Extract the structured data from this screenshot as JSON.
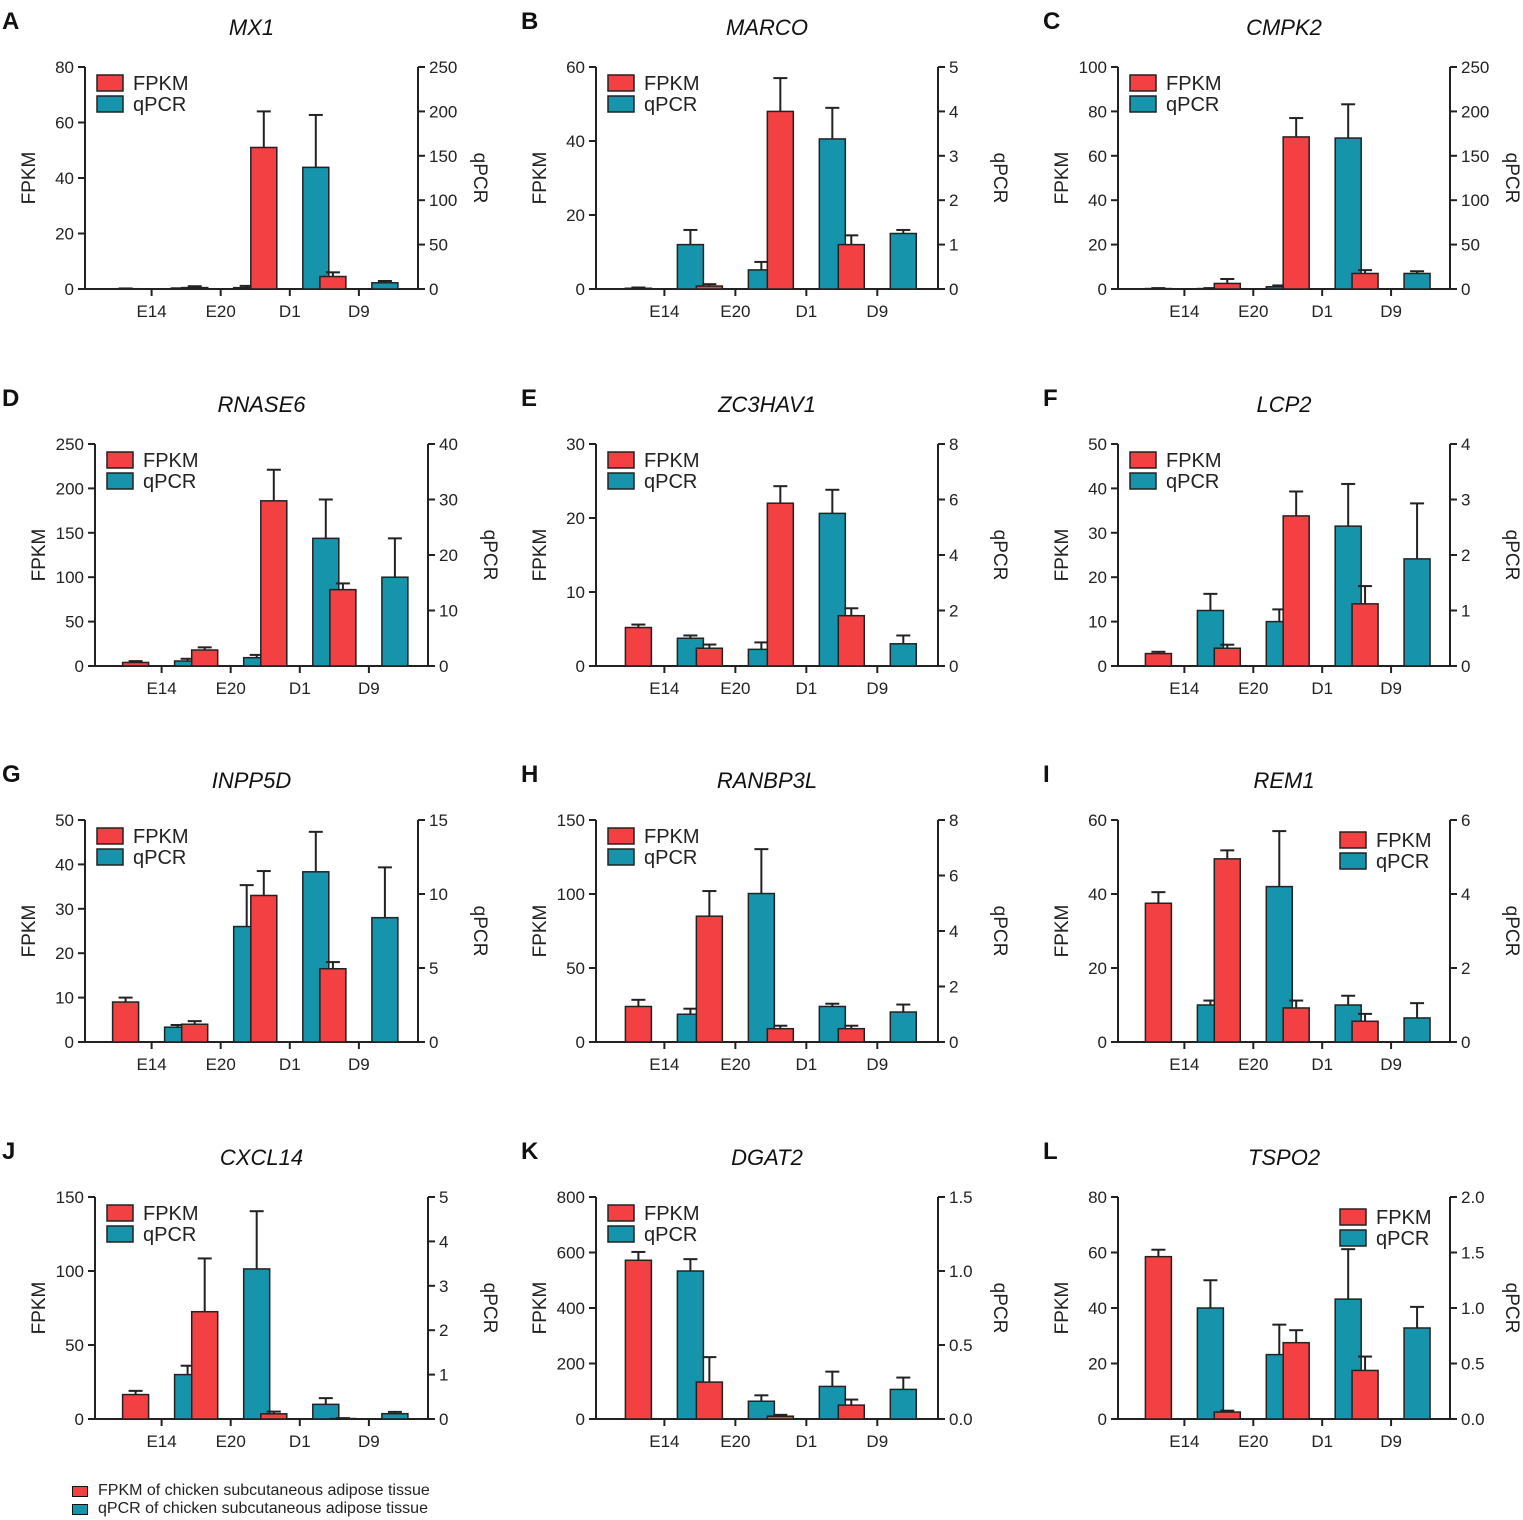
{
  "colors": {
    "fpkm": "#f24043",
    "qpcr": "#1594ab",
    "axis": "#222222"
  },
  "legend": {
    "fpkm_label": "FPKM",
    "qpcr_label": "qPCR"
  },
  "axis_labels": {
    "left": "FPKM",
    "right": "qPCR"
  },
  "footer_legend": {
    "fpkm": "FPKM of chicken subcutaneous adipose tissue",
    "qpcr": "qPCR of chicken subcutaneous adipose tissue"
  },
  "chart_data": [
    {
      "type": "bar",
      "panel": "A",
      "title": "MX1",
      "categories": [
        "E14",
        "E20",
        "D1",
        "D9"
      ],
      "left": {
        "label": "FPKM",
        "ylim": [
          0,
          80
        ],
        "ticks": [
          "0",
          "20",
          "40",
          "60",
          "80"
        ]
      },
      "right": {
        "label": "qPCR",
        "ylim": [
          0,
          250
        ],
        "ticks": [
          "0",
          "50",
          "100",
          "150",
          "200",
          "250"
        ]
      },
      "legend_position": "top-left",
      "series": [
        {
          "name": "FPKM",
          "axis": "left",
          "values": [
            0.1,
            0.5,
            51,
            4.5
          ],
          "errors": [
            0.1,
            0.5,
            13,
            1.5
          ]
        },
        {
          "name": "qPCR",
          "axis": "right",
          "values": [
            0.3,
            1.5,
            137,
            7
          ],
          "errors": [
            0.5,
            2,
            59,
            2
          ]
        }
      ]
    },
    {
      "type": "bar",
      "panel": "B",
      "title": "MARCO",
      "categories": [
        "E14",
        "E20",
        "D1",
        "D9"
      ],
      "left": {
        "label": "FPKM",
        "ylim": [
          0,
          60
        ],
        "ticks": [
          "0",
          "20",
          "40",
          "60"
        ]
      },
      "right": {
        "label": "qPCR",
        "ylim": [
          0,
          5
        ],
        "ticks": [
          "0",
          "1",
          "2",
          "3",
          "4",
          "5"
        ]
      },
      "legend_position": "top-left",
      "series": [
        {
          "name": "FPKM",
          "axis": "left",
          "values": [
            0.2,
            0.8,
            48,
            12
          ],
          "errors": [
            0.2,
            0.5,
            9,
            2.5
          ]
        },
        {
          "name": "qPCR",
          "axis": "right",
          "values": [
            1,
            0.43,
            3.38,
            1.25
          ],
          "errors": [
            0.33,
            0.18,
            0.7,
            0.08
          ]
        }
      ]
    },
    {
      "type": "bar",
      "panel": "C",
      "title": "CMPK2",
      "categories": [
        "E14",
        "E20",
        "D1",
        "D9"
      ],
      "left": {
        "label": "FPKM",
        "ylim": [
          0,
          100
        ],
        "ticks": [
          "0",
          "20",
          "40",
          "60",
          "80",
          "100"
        ]
      },
      "right": {
        "label": "qPCR",
        "ylim": [
          0,
          250
        ],
        "ticks": [
          "0",
          "50",
          "100",
          "150",
          "200",
          "250"
        ]
      },
      "legend_position": "top-left",
      "series": [
        {
          "name": "FPKM",
          "axis": "left",
          "values": [
            0.2,
            2.5,
            68.5,
            7
          ],
          "errors": [
            0.2,
            2,
            8.5,
            1.5
          ]
        },
        {
          "name": "qPCR",
          "axis": "right",
          "values": [
            0.5,
            2.5,
            170,
            17.5
          ],
          "errors": [
            0.5,
            1.5,
            38,
            2.5
          ]
        }
      ]
    },
    {
      "type": "bar",
      "panel": "D",
      "title": "RNASE6",
      "categories": [
        "E14",
        "E20",
        "D1",
        "D9"
      ],
      "left": {
        "label": "FPKM",
        "ylim": [
          0,
          250
        ],
        "ticks": [
          "0",
          "50",
          "100",
          "150",
          "200",
          "250"
        ]
      },
      "right": {
        "label": "qPCR",
        "ylim": [
          0,
          40
        ],
        "ticks": [
          "0",
          "10",
          "20",
          "30",
          "40"
        ]
      },
      "legend_position": "top-left",
      "series": [
        {
          "name": "FPKM",
          "axis": "left",
          "values": [
            4,
            18,
            186,
            86
          ],
          "errors": [
            1.5,
            3,
            35,
            7
          ]
        },
        {
          "name": "qPCR",
          "axis": "right",
          "values": [
            0.9,
            1.5,
            23,
            16
          ],
          "errors": [
            0.4,
            0.5,
            7,
            7
          ]
        }
      ]
    },
    {
      "type": "bar",
      "panel": "E",
      "title": "ZC3HAV1",
      "categories": [
        "E14",
        "E20",
        "D1",
        "D9"
      ],
      "left": {
        "label": "FPKM",
        "ylim": [
          0,
          30
        ],
        "ticks": [
          "0",
          "10",
          "20",
          "30"
        ]
      },
      "right": {
        "label": "qPCR",
        "ylim": [
          0,
          8
        ],
        "ticks": [
          "0",
          "2",
          "4",
          "6",
          "8"
        ]
      },
      "legend_position": "top-left",
      "series": [
        {
          "name": "FPKM",
          "axis": "left",
          "values": [
            5.2,
            2.4,
            22,
            6.8
          ],
          "errors": [
            0.4,
            0.5,
            2.3,
            1
          ]
        },
        {
          "name": "qPCR",
          "axis": "right",
          "values": [
            1,
            0.6,
            5.5,
            0.8
          ],
          "errors": [
            0.1,
            0.25,
            0.85,
            0.3
          ]
        }
      ]
    },
    {
      "type": "bar",
      "panel": "F",
      "title": "LCP2",
      "categories": [
        "E14",
        "E20",
        "D1",
        "D9"
      ],
      "left": {
        "label": "FPKM",
        "ylim": [
          0,
          50
        ],
        "ticks": [
          "0",
          "10",
          "20",
          "30",
          "40",
          "50"
        ]
      },
      "right": {
        "label": "qPCR",
        "ylim": [
          0,
          4
        ],
        "ticks": [
          "0",
          "1",
          "2",
          "3",
          "4"
        ]
      },
      "legend_position": "top-left",
      "series": [
        {
          "name": "FPKM",
          "axis": "left",
          "values": [
            2.8,
            4,
            33.8,
            14
          ],
          "errors": [
            0.4,
            0.8,
            5.5,
            4
          ]
        },
        {
          "name": "qPCR",
          "axis": "right",
          "values": [
            1,
            0.8,
            2.52,
            1.93
          ],
          "errors": [
            0.3,
            0.22,
            0.76,
            1
          ]
        }
      ]
    },
    {
      "type": "bar",
      "panel": "G",
      "title": "INPP5D",
      "categories": [
        "E14",
        "E20",
        "D1",
        "D9"
      ],
      "left": {
        "label": "FPKM",
        "ylim": [
          0,
          50
        ],
        "ticks": [
          "0",
          "10",
          "20",
          "30",
          "40",
          "50"
        ]
      },
      "right": {
        "label": "qPCR",
        "ylim": [
          0,
          15
        ],
        "ticks": [
          "0",
          "5",
          "10",
          "15"
        ]
      },
      "legend_position": "top-left",
      "series": [
        {
          "name": "FPKM",
          "axis": "left",
          "values": [
            9,
            4,
            33,
            16.5
          ],
          "errors": [
            1,
            0.7,
            5.5,
            1.5
          ]
        },
        {
          "name": "qPCR",
          "axis": "right",
          "values": [
            1,
            7.8,
            11.5,
            8.4
          ],
          "errors": [
            0.15,
            2.8,
            2.7,
            3.4
          ]
        }
      ]
    },
    {
      "type": "bar",
      "panel": "H",
      "title": "RANBP3L",
      "categories": [
        "E14",
        "E20",
        "D1",
        "D9"
      ],
      "left": {
        "label": "FPKM",
        "ylim": [
          0,
          150
        ],
        "ticks": [
          "0",
          "50",
          "100",
          "150"
        ]
      },
      "right": {
        "label": "qPCR",
        "ylim": [
          0,
          8
        ],
        "ticks": [
          "0",
          "2",
          "4",
          "6",
          "8"
        ]
      },
      "legend_position": "top-left",
      "series": [
        {
          "name": "FPKM",
          "axis": "left",
          "values": [
            24,
            85,
            9,
            9
          ],
          "errors": [
            4.5,
            17,
            2,
            2
          ]
        },
        {
          "name": "qPCR",
          "axis": "right",
          "values": [
            1,
            5.35,
            1.28,
            1.08
          ],
          "errors": [
            0.2,
            1.6,
            0.1,
            0.27
          ]
        }
      ]
    },
    {
      "type": "bar",
      "panel": "I",
      "title": "REM1",
      "categories": [
        "E14",
        "E20",
        "D1",
        "D9"
      ],
      "left": {
        "label": "FPKM",
        "ylim": [
          0,
          60
        ],
        "ticks": [
          "0",
          "20",
          "40",
          "60"
        ]
      },
      "right": {
        "label": "qPCR",
        "ylim": [
          0,
          6
        ],
        "ticks": [
          "0",
          "2",
          "4",
          "6"
        ]
      },
      "legend_position": "top-right",
      "series": [
        {
          "name": "FPKM",
          "axis": "left",
          "values": [
            37.5,
            49.5,
            9.2,
            5.6
          ],
          "errors": [
            3,
            2.3,
            2,
            2
          ]
        },
        {
          "name": "qPCR",
          "axis": "right",
          "values": [
            1,
            4.2,
            1,
            0.65
          ],
          "errors": [
            0.12,
            1.5,
            0.25,
            0.4
          ]
        }
      ]
    },
    {
      "type": "bar",
      "panel": "J",
      "title": "CXCL14",
      "categories": [
        "E14",
        "E20",
        "D1",
        "D9"
      ],
      "left": {
        "label": "FPKM",
        "ylim": [
          0,
          150
        ],
        "ticks": [
          "0",
          "50",
          "100",
          "150"
        ]
      },
      "right": {
        "label": "qPCR",
        "ylim": [
          0,
          5
        ],
        "ticks": [
          "0",
          "1",
          "2",
          "3",
          "4",
          "5"
        ]
      },
      "legend_position": "top-left",
      "series": [
        {
          "name": "FPKM",
          "axis": "left",
          "values": [
            16.5,
            72.5,
            3.5,
            0.3
          ],
          "errors": [
            2.5,
            36,
            1.5,
            0.3
          ]
        },
        {
          "name": "qPCR",
          "axis": "right",
          "values": [
            1,
            3.38,
            0.33,
            0.12
          ],
          "errors": [
            0.2,
            1.3,
            0.14,
            0.04
          ]
        }
      ]
    },
    {
      "type": "bar",
      "panel": "K",
      "title": "DGAT2",
      "categories": [
        "E14",
        "E20",
        "D1",
        "D9"
      ],
      "left": {
        "label": "FPKM",
        "ylim": [
          0,
          800
        ],
        "ticks": [
          "0",
          "200",
          "400",
          "600",
          "800"
        ]
      },
      "right": {
        "label": "qPCR",
        "ylim": [
          0,
          1.5
        ],
        "ticks": [
          "0.0",
          "0.5",
          "1.0",
          "1.5"
        ]
      },
      "legend_position": "top-left",
      "series": [
        {
          "name": "FPKM",
          "axis": "left",
          "values": [
            572,
            133,
            10,
            50
          ],
          "errors": [
            30,
            90,
            5,
            20
          ]
        },
        {
          "name": "qPCR",
          "axis": "right",
          "values": [
            1,
            0.12,
            0.22,
            0.2
          ],
          "errors": [
            0.08,
            0.04,
            0.1,
            0.08
          ]
        }
      ]
    },
    {
      "type": "bar",
      "panel": "L",
      "title": "TSPO2",
      "categories": [
        "E14",
        "E20",
        "D1",
        "D9"
      ],
      "left": {
        "label": "FPKM",
        "ylim": [
          0,
          80
        ],
        "ticks": [
          "0",
          "20",
          "40",
          "60",
          "80"
        ]
      },
      "right": {
        "label": "qPCR",
        "ylim": [
          0,
          2.0
        ],
        "ticks": [
          "0.0",
          "0.5",
          "1.0",
          "1.5",
          "2.0"
        ]
      },
      "legend_position": "top-right",
      "series": [
        {
          "name": "FPKM",
          "axis": "left",
          "values": [
            58.5,
            2.5,
            27.5,
            17.5
          ],
          "errors": [
            2.5,
            0.5,
            4.5,
            5
          ]
        },
        {
          "name": "qPCR",
          "axis": "right",
          "values": [
            1,
            0.58,
            1.08,
            0.82
          ],
          "errors": [
            0.25,
            0.27,
            0.45,
            0.19
          ]
        }
      ]
    }
  ]
}
